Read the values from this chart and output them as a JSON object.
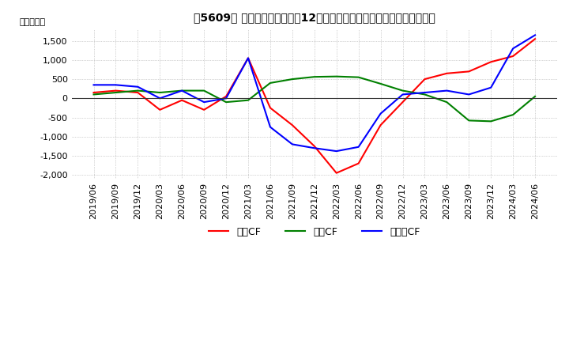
{
  "title_text": "【5609】 キャッシュフローの12か月移動合計の対前年同期増減額の推移",
  "ylabel": "（百万円）",
  "legend": [
    "営業CF",
    "投資CF",
    "フリーCF"
  ],
  "colors": {
    "eigyo": "#ff0000",
    "toshi": "#008000",
    "free": "#0000ff"
  },
  "x_labels": [
    "2019/06",
    "2019/09",
    "2019/12",
    "2020/03",
    "2020/06",
    "2020/09",
    "2020/12",
    "2021/03",
    "2021/06",
    "2021/09",
    "2021/12",
    "2022/03",
    "2022/06",
    "2022/09",
    "2022/12",
    "2023/03",
    "2023/06",
    "2023/09",
    "2023/12",
    "2024/03",
    "2024/06"
  ],
  "eigyo": [
    150,
    200,
    150,
    -300,
    -50,
    -300,
    50,
    1050,
    -250,
    -700,
    -1250,
    -1950,
    -1700,
    -700,
    -100,
    500,
    650,
    700,
    950,
    1100,
    1550
  ],
  "toshi": [
    100,
    150,
    200,
    150,
    200,
    200,
    -100,
    -50,
    400,
    500,
    560,
    570,
    550,
    380,
    200,
    100,
    -100,
    -580,
    -600,
    -430,
    50
  ],
  "free": [
    350,
    350,
    300,
    0,
    200,
    -100,
    0,
    1050,
    -750,
    -1200,
    -1300,
    -1380,
    -1270,
    -400,
    100,
    150,
    200,
    100,
    280,
    1300,
    1650
  ],
  "ylim": [
    -2100,
    1800
  ],
  "yticks": [
    -2000,
    -1500,
    -1000,
    -500,
    0,
    500,
    1000,
    1500
  ],
  "grid_color": "#aaaaaa",
  "bg_color": "#ffffff"
}
